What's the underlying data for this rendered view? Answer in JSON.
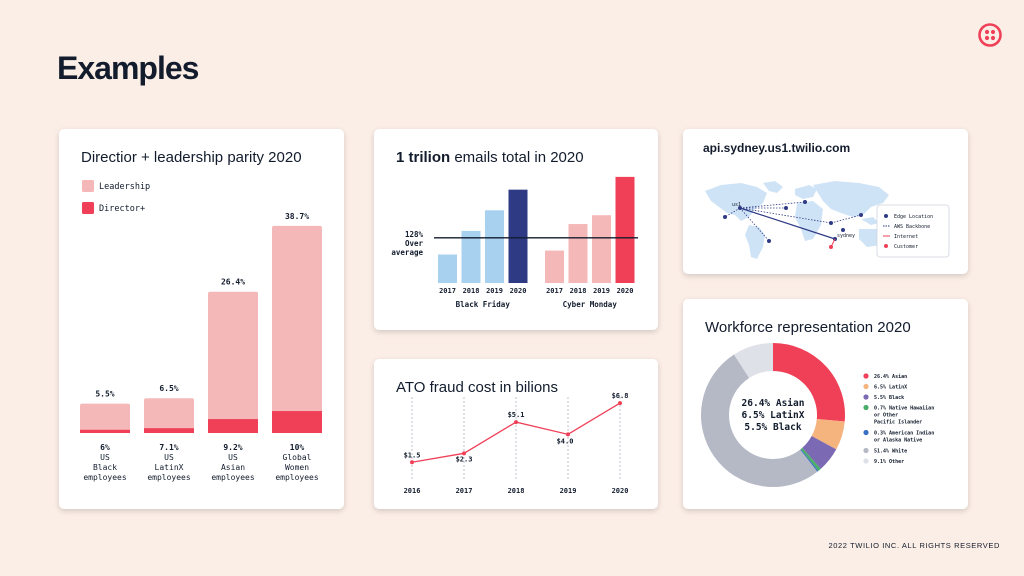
{
  "page": {
    "title": "Examples",
    "footer": "2022 TWILIO INC. ALL RIGHTS RESERVED"
  },
  "colors": {
    "pink": "#f5b8b8",
    "red": "#ef4058",
    "lightblue": "#a8d0ef",
    "navy": "#2f3a85",
    "gray": "#b5b9c6"
  },
  "chart_data": [
    {
      "type": "bar",
      "title": "Directior + leadership parity 2020",
      "legend": [
        "Leadership",
        "Director+"
      ],
      "categories": [
        "6%\nUS\nBlack\nemployees",
        "7.1%\nUS\nLatinX\nemployees",
        "9.2%\nUS\nAsian\nemployees",
        "10%\nGlobal\nWomen\nemployees"
      ],
      "value_labels": [
        "5.5%",
        "6.5%",
        "26.4%",
        "38.7%"
      ],
      "series": [
        {
          "name": "Leadership",
          "values": [
            5.5,
            6.5,
            26.4,
            38.7
          ]
        },
        {
          "name": "Director+",
          "values": [
            0.6,
            0.9,
            2.6,
            4.1
          ]
        }
      ],
      "ylim": [
        0,
        40
      ]
    },
    {
      "type": "bar",
      "title_bold": "1 trilion",
      "title_rest": " emails total in 2020",
      "reference_label": "128%\nOver\naverage",
      "groups": [
        {
          "name": "Black Friday",
          "categories": [
            "2017",
            "2018",
            "2019",
            "2020"
          ],
          "values": [
            29,
            53,
            74,
            95
          ]
        },
        {
          "name": "Cyber Monday",
          "categories": [
            "2017",
            "2018",
            "2019",
            "2020"
          ],
          "values": [
            33,
            60,
            69,
            108
          ]
        }
      ],
      "reference_value": 46,
      "ylim": [
        0,
        115
      ]
    },
    {
      "type": "line",
      "title": "ATO fraud cost in bilions",
      "x": [
        "2016",
        "2017",
        "2018",
        "2019",
        "2020"
      ],
      "values": [
        1.5,
        2.3,
        5.1,
        4.0,
        6.8
      ],
      "labels": [
        "$1.5",
        "$2.3",
        "$5.1",
        "$4.0",
        "$6.8"
      ],
      "ylim": [
        0,
        8
      ]
    },
    {
      "type": "pie",
      "title": "Workforce representation 2020",
      "center_text": [
        "26.4% Asian",
        "6.5% LatinX",
        "5.5% Black"
      ],
      "slices": [
        {
          "label": "26.4%  Asian",
          "value": 26.4,
          "color": "#ef4058"
        },
        {
          "label": "6.5%  LatinX",
          "value": 6.5,
          "color": "#f5b37e"
        },
        {
          "label": "5.5%  Black",
          "value": 5.5,
          "color": "#7b69b3"
        },
        {
          "label": "0.7%  Native Hawaiian\nor Other\nPacific Islander",
          "value": 0.7,
          "color": "#4aae6a"
        },
        {
          "label": "0.3%  American Indian\nor Alaska Native",
          "value": 0.3,
          "color": "#3b6fc4"
        },
        {
          "label": "51.4%  White",
          "value": 51.4,
          "color": "#b5b9c6"
        },
        {
          "label": "9.1%  Other",
          "value": 9.1,
          "color": "#dfe1e8"
        }
      ]
    }
  ],
  "map": {
    "title": "api.sydney.us1.twilio.com",
    "us_label": "us1",
    "sydney_label": "sydney",
    "legend": [
      {
        "label": "Edge Location",
        "color": "#2f3a85",
        "kind": "dot"
      },
      {
        "label": "AWS Backbone",
        "color": "#2f3a85",
        "kind": "dash"
      },
      {
        "label": "Internet",
        "color": "#ef4058",
        "kind": "line"
      },
      {
        "label": "Customer",
        "color": "#ef4058",
        "kind": "dot"
      }
    ]
  }
}
